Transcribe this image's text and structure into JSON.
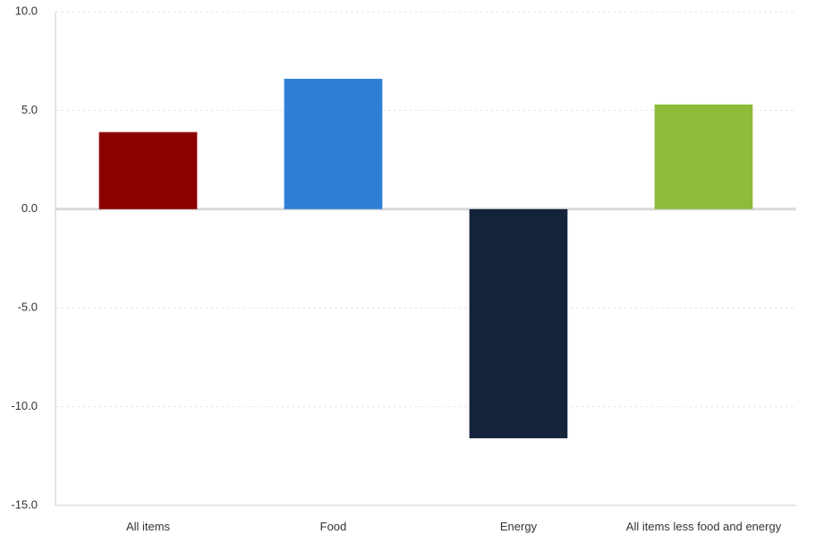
{
  "chart_data": {
    "type": "bar",
    "categories": [
      "All items",
      "Food",
      "Energy",
      "All items less food and energy"
    ],
    "values": [
      3.9,
      6.6,
      -11.6,
      5.3
    ],
    "colors": [
      "#8b0000",
      "#2e7fd6",
      "#13243a",
      "#8dbb3a"
    ],
    "ylim": [
      -15,
      10
    ],
    "yticks": [
      {
        "value": -15,
        "label": "-15.0"
      },
      {
        "value": -10,
        "label": "-10.0"
      },
      {
        "value": -5,
        "label": "-5.0"
      },
      {
        "value": 0,
        "label": "0.0"
      },
      {
        "value": 5,
        "label": "5.0"
      },
      {
        "value": 10,
        "label": "10.0"
      }
    ],
    "grid": true
  }
}
